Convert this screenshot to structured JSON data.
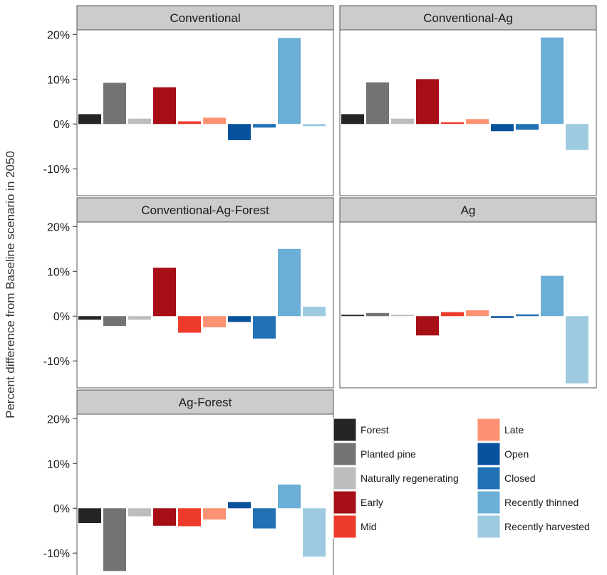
{
  "chart_data": {
    "type": "bar",
    "ylabel": "Percent difference from Baseline scenario in 2050",
    "y_ticks": [
      20,
      10,
      0,
      -10
    ],
    "y_tick_labels": [
      "20%",
      "10%",
      "0%",
      "-10%"
    ],
    "ylim": [
      -16,
      21
    ],
    "grid": false,
    "legend_position": "bottom-right",
    "categories": [
      "Forest",
      "Planted pine",
      "Naturally regenerating",
      "Early",
      "Mid",
      "Late",
      "Open",
      "Closed",
      "Recently thinned",
      "Recently harvested"
    ],
    "colors": [
      "#252525",
      "#737373",
      "#bdbdbd",
      "#a50f15",
      "#ef3b2c",
      "#fc9272",
      "#08519c",
      "#2171b5",
      "#6baed6",
      "#9ecae1"
    ],
    "panels": [
      {
        "title": "Conventional",
        "values": [
          2.2,
          9.2,
          1.2,
          8.2,
          0.6,
          1.4,
          -3.6,
          -0.8,
          19.2,
          -0.5
        ]
      },
      {
        "title": "Conventional-Ag",
        "values": [
          2.2,
          9.3,
          1.2,
          10.0,
          0.4,
          1.1,
          -1.6,
          -1.3,
          19.3,
          -5.8
        ]
      },
      {
        "title": "Conventional-Ag-Forest",
        "values": [
          -0.8,
          -2.2,
          -0.8,
          10.8,
          -3.7,
          -2.5,
          -1.3,
          -5.0,
          15.0,
          2.1
        ]
      },
      {
        "title": "Ag",
        "values": [
          0.3,
          0.7,
          0.3,
          -4.3,
          0.9,
          1.3,
          -0.4,
          0.4,
          9.0,
          -15.0
        ]
      },
      {
        "title": "Ag-Forest",
        "values": [
          -3.3,
          -14.0,
          -1.8,
          -3.9,
          -4.0,
          -2.5,
          1.4,
          -4.5,
          5.3,
          -10.8
        ]
      }
    ]
  }
}
